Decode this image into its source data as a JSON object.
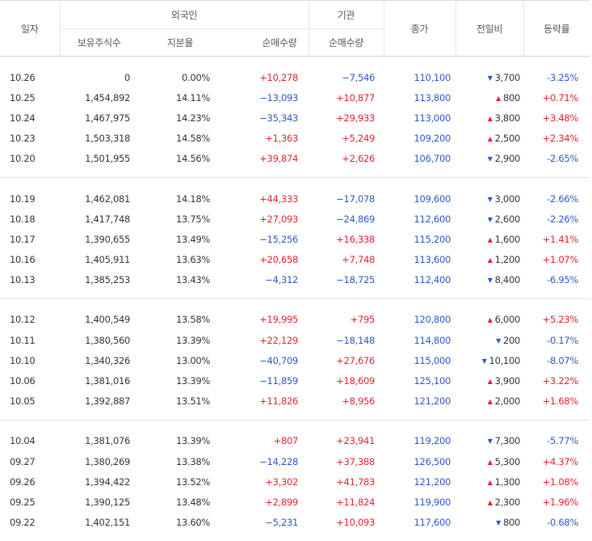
{
  "header": {
    "date": "일자",
    "foreign_group": "외국인",
    "institution_group": "기관",
    "close": "종가",
    "change": "전일비",
    "rate": "등락률",
    "holdings": "보유주식수",
    "holding_ratio": "지분율",
    "foreign_net": "순매수량",
    "institution_net": "순매수량"
  },
  "colors": {
    "up": "#e3222d",
    "down": "#2a57c8"
  },
  "groups": [
    [
      {
        "date": "10.26",
        "holdings": "0",
        "ratio": "0.00%",
        "foreign_net": "+10,278",
        "fdir": "up",
        "inst_net": "−7,546",
        "idir": "down",
        "close": "110,100",
        "arrow": "▼",
        "change": "3,700",
        "cdir": "down",
        "rate": "-3.25%",
        "rdir": "down"
      },
      {
        "date": "10.25",
        "holdings": "1,454,892",
        "ratio": "14.11%",
        "foreign_net": "−13,093",
        "fdir": "down",
        "inst_net": "+10,877",
        "idir": "up",
        "close": "113,800",
        "arrow": "▲",
        "change": "800",
        "cdir": "up",
        "rate": "+0.71%",
        "rdir": "up"
      },
      {
        "date": "10.24",
        "holdings": "1,467,975",
        "ratio": "14.23%",
        "foreign_net": "−35,343",
        "fdir": "down",
        "inst_net": "+29,933",
        "idir": "up",
        "close": "113,000",
        "arrow": "▲",
        "change": "3,800",
        "cdir": "up",
        "rate": "+3.48%",
        "rdir": "up"
      },
      {
        "date": "10.23",
        "holdings": "1,503,318",
        "ratio": "14.58%",
        "foreign_net": "+1,363",
        "fdir": "up",
        "inst_net": "+5,249",
        "idir": "up",
        "close": "109,200",
        "arrow": "▲",
        "change": "2,500",
        "cdir": "up",
        "rate": "+2.34%",
        "rdir": "up"
      },
      {
        "date": "10.20",
        "holdings": "1,501,955",
        "ratio": "14.56%",
        "foreign_net": "+39,874",
        "fdir": "up",
        "inst_net": "+2,626",
        "idir": "up",
        "close": "106,700",
        "arrow": "▼",
        "change": "2,900",
        "cdir": "down",
        "rate": "-2.65%",
        "rdir": "down"
      }
    ],
    [
      {
        "date": "10.19",
        "holdings": "1,462,081",
        "ratio": "14.18%",
        "foreign_net": "+44,333",
        "fdir": "up",
        "inst_net": "−17,078",
        "idir": "down",
        "close": "109,600",
        "arrow": "▼",
        "change": "3,000",
        "cdir": "down",
        "rate": "-2.66%",
        "rdir": "down"
      },
      {
        "date": "10.18",
        "holdings": "1,417,748",
        "ratio": "13.75%",
        "foreign_net": "+27,093",
        "fdir": "up",
        "inst_net": "−24,869",
        "idir": "down",
        "close": "112,600",
        "arrow": "▼",
        "change": "2,600",
        "cdir": "down",
        "rate": "-2.26%",
        "rdir": "down"
      },
      {
        "date": "10.17",
        "holdings": "1,390,655",
        "ratio": "13.49%",
        "foreign_net": "−15,256",
        "fdir": "down",
        "inst_net": "+16,338",
        "idir": "up",
        "close": "115,200",
        "arrow": "▲",
        "change": "1,600",
        "cdir": "up",
        "rate": "+1.41%",
        "rdir": "up"
      },
      {
        "date": "10.16",
        "holdings": "1,405,911",
        "ratio": "13.63%",
        "foreign_net": "+20,658",
        "fdir": "up",
        "inst_net": "+7,748",
        "idir": "up",
        "close": "113,600",
        "arrow": "▲",
        "change": "1,200",
        "cdir": "up",
        "rate": "+1.07%",
        "rdir": "up"
      },
      {
        "date": "10.13",
        "holdings": "1,385,253",
        "ratio": "13.43%",
        "foreign_net": "−4,312",
        "fdir": "down",
        "inst_net": "−18,725",
        "idir": "down",
        "close": "112,400",
        "arrow": "▼",
        "change": "8,400",
        "cdir": "down",
        "rate": "-6.95%",
        "rdir": "down"
      }
    ],
    [
      {
        "date": "10.12",
        "holdings": "1,400,549",
        "ratio": "13.58%",
        "foreign_net": "+19,995",
        "fdir": "up",
        "inst_net": "+795",
        "idir": "up",
        "close": "120,800",
        "arrow": "▲",
        "change": "6,000",
        "cdir": "up",
        "rate": "+5.23%",
        "rdir": "up"
      },
      {
        "date": "10.11",
        "holdings": "1,380,560",
        "ratio": "13.39%",
        "foreign_net": "+22,129",
        "fdir": "up",
        "inst_net": "−18,148",
        "idir": "down",
        "close": "114,800",
        "arrow": "▼",
        "change": "200",
        "cdir": "down",
        "rate": "-0.17%",
        "rdir": "down"
      },
      {
        "date": "10.10",
        "holdings": "1,340,326",
        "ratio": "13.00%",
        "foreign_net": "−40,709",
        "fdir": "down",
        "inst_net": "+27,676",
        "idir": "up",
        "close": "115,000",
        "arrow": "▼",
        "change": "10,100",
        "cdir": "down",
        "rate": "-8.07%",
        "rdir": "down"
      },
      {
        "date": "10.06",
        "holdings": "1,381,016",
        "ratio": "13.39%",
        "foreign_net": "−11,859",
        "fdir": "down",
        "inst_net": "+18,609",
        "idir": "up",
        "close": "125,100",
        "arrow": "▲",
        "change": "3,900",
        "cdir": "up",
        "rate": "+3.22%",
        "rdir": "up"
      },
      {
        "date": "10.05",
        "holdings": "1,392,887",
        "ratio": "13.51%",
        "foreign_net": "+11,826",
        "fdir": "up",
        "inst_net": "+8,956",
        "idir": "up",
        "close": "121,200",
        "arrow": "▲",
        "change": "2,000",
        "cdir": "up",
        "rate": "+1.68%",
        "rdir": "up"
      }
    ],
    [
      {
        "date": "10.04",
        "holdings": "1,381,076",
        "ratio": "13.39%",
        "foreign_net": "+807",
        "fdir": "up",
        "inst_net": "+23,941",
        "idir": "up",
        "close": "119,200",
        "arrow": "▼",
        "change": "7,300",
        "cdir": "down",
        "rate": "-5.77%",
        "rdir": "down"
      },
      {
        "date": "09.27",
        "holdings": "1,380,269",
        "ratio": "13.38%",
        "foreign_net": "−14,228",
        "fdir": "down",
        "inst_net": "+37,388",
        "idir": "up",
        "close": "126,500",
        "arrow": "▲",
        "change": "5,300",
        "cdir": "up",
        "rate": "+4.37%",
        "rdir": "up"
      },
      {
        "date": "09.26",
        "holdings": "1,394,422",
        "ratio": "13.52%",
        "foreign_net": "+3,302",
        "fdir": "up",
        "inst_net": "+41,783",
        "idir": "up",
        "close": "121,200",
        "arrow": "▲",
        "change": "1,300",
        "cdir": "up",
        "rate": "+1.08%",
        "rdir": "up"
      },
      {
        "date": "09.25",
        "holdings": "1,390,125",
        "ratio": "13.48%",
        "foreign_net": "+2,899",
        "fdir": "up",
        "inst_net": "+11,824",
        "idir": "up",
        "close": "119,900",
        "arrow": "▲",
        "change": "2,300",
        "cdir": "up",
        "rate": "+1.96%",
        "rdir": "up"
      },
      {
        "date": "09.22",
        "holdings": "1,402,151",
        "ratio": "13.60%",
        "foreign_net": "−5,231",
        "fdir": "down",
        "inst_net": "+10,093",
        "idir": "up",
        "close": "117,600",
        "arrow": "▼",
        "change": "800",
        "cdir": "down",
        "rate": "-0.68%",
        "rdir": "down"
      }
    ]
  ]
}
